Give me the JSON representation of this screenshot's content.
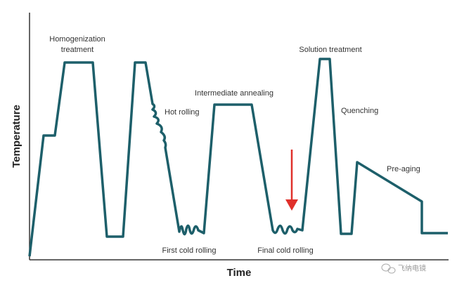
{
  "axes": {
    "y_title": "Temperature",
    "x_title": "Time"
  },
  "steps": {
    "homogenization": [
      "Homogenization",
      "treatment"
    ],
    "hot_rolling": "Hot rolling",
    "intermediate_annealing": "Intermediate annealing",
    "solution_treatment": "Solution treatment",
    "quenching": "Quenching",
    "pre_aging": "Pre-aging",
    "first_cold_rolling": "First cold rolling",
    "final_cold_rolling": "Final cold rolling"
  },
  "watermark": "飞纳电镜"
}
